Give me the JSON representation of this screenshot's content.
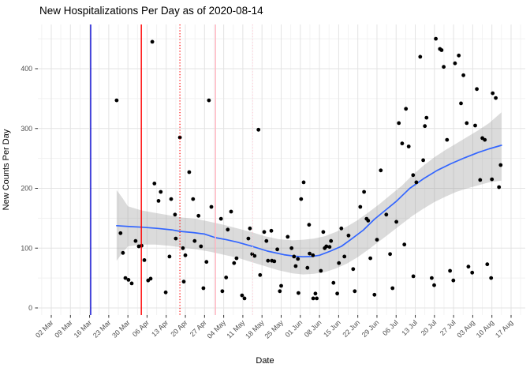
{
  "chart_data": {
    "type": "scatter",
    "title": "New Hospitalizations Per Day as of 2020-08-14",
    "xlabel": "Date",
    "ylabel": "New Counts Per Day",
    "x_axis": {
      "tick_labels": [
        "02 Mar",
        "09 Mar",
        "16 Mar",
        "23 Mar",
        "30 Mar",
        "06 Apr",
        "13 Apr",
        "20 Apr",
        "27 Apr",
        "04 May",
        "11 May",
        "18 May",
        "25 May",
        "01 Jun",
        "08 Jun",
        "15 Jun",
        "22 Jun",
        "29 Jun",
        "06 Jul",
        "13 Jul",
        "20 Jul",
        "27 Jul",
        "03 Aug",
        "10 Aug",
        "17 Aug"
      ],
      "tick_interval_days": 7,
      "units": "days since first tick (02 Mar 2020)"
    },
    "y_axis": {
      "ticks": [
        0,
        100,
        200,
        300,
        400
      ],
      "minor_ticks": [
        50,
        150,
        250,
        350,
        450
      ],
      "range": [
        0,
        457
      ]
    },
    "grid": true,
    "legend": "none",
    "point_color": "#000000",
    "points": [
      [
        23.9,
        347
      ],
      [
        25.3,
        125
      ],
      [
        26.2,
        92
      ],
      [
        27.1,
        50
      ],
      [
        28.2,
        47
      ],
      [
        29.4,
        41
      ],
      [
        30.8,
        112
      ],
      [
        32,
        103
      ],
      [
        33,
        104
      ],
      [
        34,
        80
      ],
      [
        35.4,
        46
      ],
      [
        36.3,
        49
      ],
      [
        36.9,
        445
      ],
      [
        37.7,
        208
      ],
      [
        39.2,
        179
      ],
      [
        40,
        194
      ],
      [
        41.8,
        26
      ],
      [
        43.2,
        86
      ],
      [
        43.8,
        182
      ],
      [
        45.2,
        156
      ],
      [
        45.5,
        116
      ],
      [
        47,
        285
      ],
      [
        48.1,
        100
      ],
      [
        48.4,
        44
      ],
      [
        49,
        88
      ],
      [
        50.4,
        227
      ],
      [
        51.8,
        182
      ],
      [
        52.4,
        112
      ],
      [
        53.8,
        154
      ],
      [
        54.7,
        103
      ],
      [
        55.6,
        33
      ],
      [
        56.7,
        77
      ],
      [
        57.6,
        347
      ],
      [
        58.5,
        169
      ],
      [
        62,
        149
      ],
      [
        62.5,
        28
      ],
      [
        63.9,
        51
      ],
      [
        64.5,
        131
      ],
      [
        65.7,
        161
      ],
      [
        66.8,
        75
      ],
      [
        67.7,
        83
      ],
      [
        69.7,
        21
      ],
      [
        70.6,
        16
      ],
      [
        72,
        116
      ],
      [
        72.6,
        133
      ],
      [
        73.4,
        90
      ],
      [
        74.3,
        87
      ],
      [
        75.7,
        298
      ],
      [
        76.3,
        55
      ],
      [
        77.8,
        127
      ],
      [
        78.6,
        112
      ],
      [
        79.2,
        79
      ],
      [
        80.4,
        129
      ],
      [
        80.6,
        79
      ],
      [
        81.5,
        78
      ],
      [
        82.6,
        98
      ],
      [
        83.5,
        28
      ],
      [
        84,
        37
      ],
      [
        86.4,
        119
      ],
      [
        87.8,
        100
      ],
      [
        88.7,
        86
      ],
      [
        89.3,
        70
      ],
      [
        90.1,
        82
      ],
      [
        90.3,
        25
      ],
      [
        91.3,
        182
      ],
      [
        92.2,
        210
      ],
      [
        93.6,
        67
      ],
      [
        94.2,
        139
      ],
      [
        94.4,
        91
      ],
      [
        95.6,
        88
      ],
      [
        95.7,
        16
      ],
      [
        96.5,
        24
      ],
      [
        97,
        16
      ],
      [
        98.5,
        62
      ],
      [
        99.4,
        127
      ],
      [
        99.9,
        100
      ],
      [
        100.5,
        103
      ],
      [
        101.7,
        102
      ],
      [
        102.2,
        112
      ],
      [
        103.1,
        42
      ],
      [
        104.5,
        24
      ],
      [
        105.1,
        75
      ],
      [
        106,
        133
      ],
      [
        107.1,
        86
      ],
      [
        108.6,
        121
      ],
      [
        110.3,
        65
      ],
      [
        110.9,
        28
      ],
      [
        112.9,
        169
      ],
      [
        114.3,
        194
      ],
      [
        115.2,
        149
      ],
      [
        115.8,
        146
      ],
      [
        116.6,
        83
      ],
      [
        118.1,
        22
      ],
      [
        119,
        114
      ],
      [
        120.4,
        230
      ],
      [
        122.4,
        156
      ],
      [
        123.8,
        90
      ],
      [
        124.7,
        33
      ],
      [
        126.1,
        144
      ],
      [
        127,
        309
      ],
      [
        128.2,
        275
      ],
      [
        129,
        106
      ],
      [
        129.6,
        333
      ],
      [
        130.6,
        270
      ],
      [
        132.2,
        222
      ],
      [
        132.3,
        53
      ],
      [
        133.4,
        210
      ],
      [
        134.8,
        420
      ],
      [
        135.9,
        247
      ],
      [
        136.5,
        304
      ],
      [
        137.1,
        318
      ],
      [
        139,
        50
      ],
      [
        139.9,
        38
      ],
      [
        140.5,
        450
      ],
      [
        142,
        433
      ],
      [
        142.6,
        431
      ],
      [
        143.4,
        403
      ],
      [
        144.6,
        281
      ],
      [
        145.7,
        62
      ],
      [
        146.9,
        46
      ],
      [
        147.5,
        409
      ],
      [
        148.9,
        422
      ],
      [
        149.7,
        342
      ],
      [
        150.6,
        389
      ],
      [
        151.8,
        309
      ],
      [
        152.4,
        69
      ],
      [
        153.8,
        59
      ],
      [
        154.9,
        305
      ],
      [
        155.5,
        366
      ],
      [
        156.7,
        214
      ],
      [
        157.5,
        284
      ],
      [
        158.4,
        281
      ],
      [
        159.3,
        73
      ],
      [
        160.7,
        50
      ],
      [
        161,
        215
      ],
      [
        161.3,
        359
      ],
      [
        162.4,
        351
      ],
      [
        163.6,
        202
      ],
      [
        164.2,
        239
      ]
    ],
    "smooth_line": {
      "color": "#3366FF",
      "points": [
        [
          23.9,
          137.5
        ],
        [
          29,
          136
        ],
        [
          33,
          135
        ],
        [
          39,
          133
        ],
        [
          44,
          130.5
        ],
        [
          47,
          128
        ],
        [
          52,
          126
        ],
        [
          56,
          123.5
        ],
        [
          60,
          117.5
        ],
        [
          64,
          114
        ],
        [
          68,
          110
        ],
        [
          73,
          103.5
        ],
        [
          79,
          95
        ],
        [
          85,
          89
        ],
        [
          89,
          86.5
        ],
        [
          92,
          85.5
        ],
        [
          95,
          86
        ],
        [
          98,
          88
        ],
        [
          102,
          95
        ],
        [
          106,
          103
        ],
        [
          109,
          113
        ],
        [
          114,
          130
        ],
        [
          118,
          148
        ],
        [
          122,
          163
        ],
        [
          126,
          178
        ],
        [
          131,
          200
        ],
        [
          136,
          216
        ],
        [
          141,
          230
        ],
        [
          146,
          241
        ],
        [
          151,
          251
        ],
        [
          156,
          260
        ],
        [
          160,
          266
        ],
        [
          164.5,
          272
        ]
      ]
    },
    "confidence_band": {
      "color": "#999999",
      "opacity": 0.35,
      "points": [
        [
          23.9,
          79,
          197
        ],
        [
          26,
          92,
          184
        ],
        [
          28,
          103,
          170
        ],
        [
          33,
          106,
          163
        ],
        [
          38,
          106,
          159
        ],
        [
          43,
          104,
          155
        ],
        [
          48,
          101,
          151
        ],
        [
          53,
          98,
          149
        ],
        [
          58,
          94,
          144
        ],
        [
          63,
          89,
          139
        ],
        [
          68,
          84,
          133
        ],
        [
          73,
          77,
          127
        ],
        [
          78,
          70,
          120
        ],
        [
          83,
          63,
          115
        ],
        [
          88,
          58,
          113
        ],
        [
          92,
          56,
          114
        ],
        [
          96,
          57,
          116
        ],
        [
          100,
          60,
          120
        ],
        [
          104,
          66,
          127
        ],
        [
          108,
          74,
          136
        ],
        [
          112,
          85,
          147
        ],
        [
          116,
          98,
          160
        ],
        [
          120,
          112,
          174
        ],
        [
          124,
          126,
          189
        ],
        [
          128,
          140,
          204
        ],
        [
          132,
          154,
          222
        ],
        [
          136,
          166,
          238
        ],
        [
          140,
          177,
          252
        ],
        [
          144,
          186,
          264
        ],
        [
          148,
          194,
          275
        ],
        [
          152,
          200,
          286
        ],
        [
          156,
          205,
          297
        ],
        [
          160,
          210,
          309
        ],
        [
          164.5,
          213,
          327
        ]
      ]
    },
    "vlines": [
      {
        "day": 14.4,
        "color": "#0000CD",
        "style": "solid"
      },
      {
        "day": 32.9,
        "color": "#FF0000",
        "style": "solid"
      },
      {
        "day": 47.0,
        "color": "#FF0000",
        "style": "dotted"
      },
      {
        "day": 60.0,
        "color": "#FFB6C1",
        "style": "solid"
      },
      {
        "day": 73.6,
        "color": "#FFD0DA",
        "style": "dotted"
      }
    ]
  }
}
